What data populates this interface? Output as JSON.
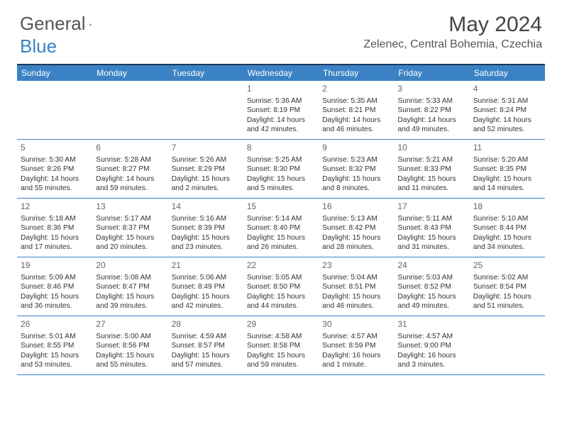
{
  "logo": {
    "text1": "General",
    "text2": "Blue"
  },
  "title": "May 2024",
  "location": "Zelenec, Central Bohemia, Czechia",
  "colors": {
    "header_bar": "#3b82c4",
    "top_border": "#1b3a5c",
    "row_border": "#3b82c4",
    "text_dark": "#333333",
    "text_mid": "#555555",
    "daynum": "#666666",
    "white": "#ffffff"
  },
  "day_names": [
    "Sunday",
    "Monday",
    "Tuesday",
    "Wednesday",
    "Thursday",
    "Friday",
    "Saturday"
  ],
  "weeks": [
    [
      {},
      {},
      {},
      {
        "day": "1",
        "sunrise": "Sunrise: 5:36 AM",
        "sunset": "Sunset: 8:19 PM",
        "daylight": "Daylight: 14 hours and 42 minutes."
      },
      {
        "day": "2",
        "sunrise": "Sunrise: 5:35 AM",
        "sunset": "Sunset: 8:21 PM",
        "daylight": "Daylight: 14 hours and 46 minutes."
      },
      {
        "day": "3",
        "sunrise": "Sunrise: 5:33 AM",
        "sunset": "Sunset: 8:22 PM",
        "daylight": "Daylight: 14 hours and 49 minutes."
      },
      {
        "day": "4",
        "sunrise": "Sunrise: 5:31 AM",
        "sunset": "Sunset: 8:24 PM",
        "daylight": "Daylight: 14 hours and 52 minutes."
      }
    ],
    [
      {
        "day": "5",
        "sunrise": "Sunrise: 5:30 AM",
        "sunset": "Sunset: 8:26 PM",
        "daylight": "Daylight: 14 hours and 55 minutes."
      },
      {
        "day": "6",
        "sunrise": "Sunrise: 5:28 AM",
        "sunset": "Sunset: 8:27 PM",
        "daylight": "Daylight: 14 hours and 59 minutes."
      },
      {
        "day": "7",
        "sunrise": "Sunrise: 5:26 AM",
        "sunset": "Sunset: 8:29 PM",
        "daylight": "Daylight: 15 hours and 2 minutes."
      },
      {
        "day": "8",
        "sunrise": "Sunrise: 5:25 AM",
        "sunset": "Sunset: 8:30 PM",
        "daylight": "Daylight: 15 hours and 5 minutes."
      },
      {
        "day": "9",
        "sunrise": "Sunrise: 5:23 AM",
        "sunset": "Sunset: 8:32 PM",
        "daylight": "Daylight: 15 hours and 8 minutes."
      },
      {
        "day": "10",
        "sunrise": "Sunrise: 5:21 AM",
        "sunset": "Sunset: 8:33 PM",
        "daylight": "Daylight: 15 hours and 11 minutes."
      },
      {
        "day": "11",
        "sunrise": "Sunrise: 5:20 AM",
        "sunset": "Sunset: 8:35 PM",
        "daylight": "Daylight: 15 hours and 14 minutes."
      }
    ],
    [
      {
        "day": "12",
        "sunrise": "Sunrise: 5:18 AM",
        "sunset": "Sunset: 8:36 PM",
        "daylight": "Daylight: 15 hours and 17 minutes."
      },
      {
        "day": "13",
        "sunrise": "Sunrise: 5:17 AM",
        "sunset": "Sunset: 8:37 PM",
        "daylight": "Daylight: 15 hours and 20 minutes."
      },
      {
        "day": "14",
        "sunrise": "Sunrise: 5:16 AM",
        "sunset": "Sunset: 8:39 PM",
        "daylight": "Daylight: 15 hours and 23 minutes."
      },
      {
        "day": "15",
        "sunrise": "Sunrise: 5:14 AM",
        "sunset": "Sunset: 8:40 PM",
        "daylight": "Daylight: 15 hours and 26 minutes."
      },
      {
        "day": "16",
        "sunrise": "Sunrise: 5:13 AM",
        "sunset": "Sunset: 8:42 PM",
        "daylight": "Daylight: 15 hours and 28 minutes."
      },
      {
        "day": "17",
        "sunrise": "Sunrise: 5:11 AM",
        "sunset": "Sunset: 8:43 PM",
        "daylight": "Daylight: 15 hours and 31 minutes."
      },
      {
        "day": "18",
        "sunrise": "Sunrise: 5:10 AM",
        "sunset": "Sunset: 8:44 PM",
        "daylight": "Daylight: 15 hours and 34 minutes."
      }
    ],
    [
      {
        "day": "19",
        "sunrise": "Sunrise: 5:09 AM",
        "sunset": "Sunset: 8:46 PM",
        "daylight": "Daylight: 15 hours and 36 minutes."
      },
      {
        "day": "20",
        "sunrise": "Sunrise: 5:08 AM",
        "sunset": "Sunset: 8:47 PM",
        "daylight": "Daylight: 15 hours and 39 minutes."
      },
      {
        "day": "21",
        "sunrise": "Sunrise: 5:06 AM",
        "sunset": "Sunset: 8:49 PM",
        "daylight": "Daylight: 15 hours and 42 minutes."
      },
      {
        "day": "22",
        "sunrise": "Sunrise: 5:05 AM",
        "sunset": "Sunset: 8:50 PM",
        "daylight": "Daylight: 15 hours and 44 minutes."
      },
      {
        "day": "23",
        "sunrise": "Sunrise: 5:04 AM",
        "sunset": "Sunset: 8:51 PM",
        "daylight": "Daylight: 15 hours and 46 minutes."
      },
      {
        "day": "24",
        "sunrise": "Sunrise: 5:03 AM",
        "sunset": "Sunset: 8:52 PM",
        "daylight": "Daylight: 15 hours and 49 minutes."
      },
      {
        "day": "25",
        "sunrise": "Sunrise: 5:02 AM",
        "sunset": "Sunset: 8:54 PM",
        "daylight": "Daylight: 15 hours and 51 minutes."
      }
    ],
    [
      {
        "day": "26",
        "sunrise": "Sunrise: 5:01 AM",
        "sunset": "Sunset: 8:55 PM",
        "daylight": "Daylight: 15 hours and 53 minutes."
      },
      {
        "day": "27",
        "sunrise": "Sunrise: 5:00 AM",
        "sunset": "Sunset: 8:56 PM",
        "daylight": "Daylight: 15 hours and 55 minutes."
      },
      {
        "day": "28",
        "sunrise": "Sunrise: 4:59 AM",
        "sunset": "Sunset: 8:57 PM",
        "daylight": "Daylight: 15 hours and 57 minutes."
      },
      {
        "day": "29",
        "sunrise": "Sunrise: 4:58 AM",
        "sunset": "Sunset: 8:58 PM",
        "daylight": "Daylight: 15 hours and 59 minutes."
      },
      {
        "day": "30",
        "sunrise": "Sunrise: 4:57 AM",
        "sunset": "Sunset: 8:59 PM",
        "daylight": "Daylight: 16 hours and 1 minute."
      },
      {
        "day": "31",
        "sunrise": "Sunrise: 4:57 AM",
        "sunset": "Sunset: 9:00 PM",
        "daylight": "Daylight: 16 hours and 3 minutes."
      },
      {}
    ]
  ]
}
